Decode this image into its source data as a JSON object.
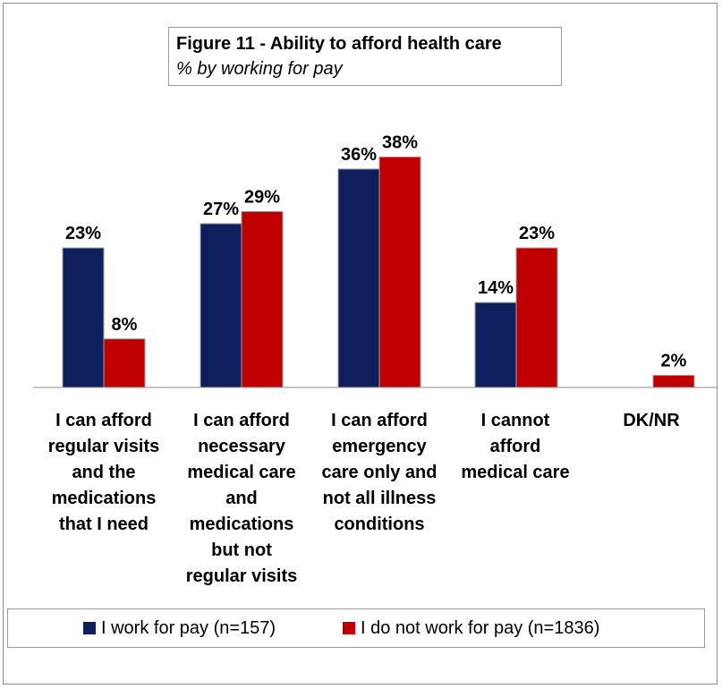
{
  "chart_data": {
    "type": "bar",
    "title": "Figure 11 - Ability to afford health care",
    "subtitle": "% by working for pay",
    "categories": [
      "I can afford\nregular visits\nand the\nmedications\nthat I need",
      "I can afford\nnecessary\nmedical care\nand\nmedications\nbut not\nregular visits",
      "I can afford\nemergency\ncare only and\nnot all illness\nconditions",
      "I cannot\nafford\nmedical care",
      "DK/NR"
    ],
    "series": [
      {
        "name": "I work for pay (n=157)",
        "color": "#0d1f5c",
        "values": [
          23,
          27,
          36,
          14,
          null
        ],
        "labels": [
          "23%",
          "27%",
          "36%",
          "14%",
          ""
        ]
      },
      {
        "name": "I do not work for pay (n=1836)",
        "color": "#c00000",
        "values": [
          8,
          29,
          38,
          23,
          2
        ],
        "labels": [
          "8%",
          "29%",
          "38%",
          "23%",
          "2%"
        ]
      }
    ],
    "ylim": [
      0,
      40
    ],
    "grid": false,
    "legend_position": "bottom"
  }
}
